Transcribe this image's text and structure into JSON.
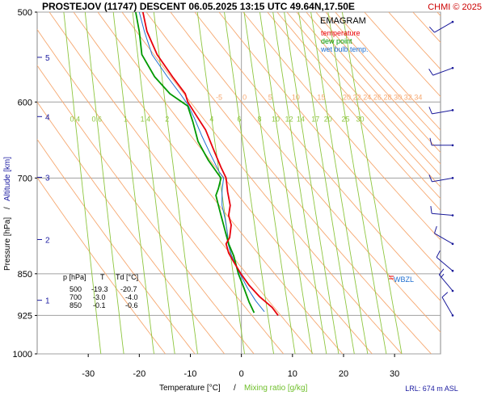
{
  "header": {
    "title": "PROSTEJOV (11747)   DESCENT   06.05.2025 13:15 UTC  49.64N,17.50E",
    "credit": "CHMI © 2025"
  },
  "legend": {
    "title": "EMAGRAM",
    "items": [
      {
        "label": "temperature",
        "color": "#e8000b"
      },
      {
        "label": "dew point",
        "color": "#009900"
      },
      {
        "label": "wet bulb temp.",
        "color": "#1f6fd0"
      }
    ]
  },
  "axes": {
    "xlabel_part1": "Temperature [°C]",
    "xlabel_sep": "/",
    "xlabel_part2": "Mixing ratio [g/kg]",
    "ylabel_part1": "Pressure [hPa]",
    "ylabel_sep": "/",
    "ylabel_part2": "Altitude [km]"
  },
  "table": {
    "header": [
      "p [hPa]",
      "T",
      "Td [°C]"
    ],
    "rows": [
      [
        "500",
        "-19.3",
        "-20.7"
      ],
      [
        "700",
        "-3.0",
        "-4.0"
      ],
      [
        "850",
        "-0.1",
        "-0.6"
      ]
    ]
  },
  "wbzl_label": "WBZL",
  "lrl_label": "LRL: 674 m ASL",
  "colors": {
    "temperature": "#e8000b",
    "dewpoint": "#009900",
    "wetbulb": "#1f6fd0",
    "dry_adiabat": "#f6a870",
    "mixing_ratio": "#8ec63f",
    "isobar": "#a0a0a0",
    "frame": "#888888",
    "altitude": "#1a1aa0",
    "wind": "#1a1a9a"
  },
  "chart_data": {
    "type": "line",
    "diagram": "emagram",
    "xlim": [
      -40,
      39
    ],
    "ylim": [
      1000,
      500
    ],
    "y_scale": "log",
    "x_ticks": [
      -30,
      -20,
      -10,
      0,
      10,
      20,
      30
    ],
    "y_ticks": [
      500,
      600,
      700,
      850,
      925,
      1000
    ],
    "altitude_ticks": [
      {
        "km": "5",
        "p": 548
      },
      {
        "km": "4",
        "p": 618
      },
      {
        "km": "3",
        "p": 699
      },
      {
        "km": "2",
        "p": 793
      },
      {
        "km": "1",
        "p": 897
      }
    ],
    "mixing_ratio_labels": [
      "0.4",
      "0.6",
      "1",
      "1.4",
      "2",
      "4",
      "6",
      "8",
      "10",
      "12",
      "14",
      "17",
      "20",
      "25",
      "30"
    ],
    "mixing_ratio_values": [
      0.4,
      0.6,
      1,
      1.4,
      2,
      4,
      6,
      8,
      10,
      12,
      14,
      17,
      20,
      25,
      30
    ],
    "dry_adiabat_labels": [
      "-5",
      "0",
      "5",
      "10",
      "15",
      "20",
      "22",
      "24",
      "26",
      "28",
      "30",
      "32",
      "34"
    ],
    "dry_adiabat_values_600hpa": [
      -5,
      0,
      5,
      10,
      15,
      20,
      22,
      24,
      26,
      28,
      30,
      32,
      34
    ],
    "series": [
      {
        "name": "temperature",
        "points": [
          [
            -19.3,
            500
          ],
          [
            -18.5,
            520
          ],
          [
            -16.5,
            545
          ],
          [
            -13.5,
            570
          ],
          [
            -11,
            590
          ],
          [
            -10.5,
            600
          ],
          [
            -9,
            615
          ],
          [
            -7,
            635
          ],
          [
            -5.5,
            660
          ],
          [
            -4,
            685
          ],
          [
            -3,
            700
          ],
          [
            -2.7,
            720
          ],
          [
            -2.2,
            740
          ],
          [
            -2.5,
            755
          ],
          [
            -2,
            770
          ],
          [
            -2.3,
            790
          ],
          [
            -3,
            800
          ],
          [
            -2.5,
            815
          ],
          [
            -1.5,
            830
          ],
          [
            -0.1,
            850
          ],
          [
            1.5,
            870
          ],
          [
            3.5,
            890
          ],
          [
            6,
            910
          ],
          [
            7.2,
            925
          ]
        ]
      },
      {
        "name": "dew point",
        "points": [
          [
            -20.7,
            500
          ],
          [
            -20,
            520
          ],
          [
            -19.5,
            545
          ],
          [
            -17,
            570
          ],
          [
            -14,
            590
          ],
          [
            -10.5,
            605
          ],
          [
            -9.5,
            625
          ],
          [
            -8.5,
            650
          ],
          [
            -6.5,
            675
          ],
          [
            -4.5,
            695
          ],
          [
            -4,
            700
          ],
          [
            -4.5,
            715
          ],
          [
            -5,
            725
          ],
          [
            -4.5,
            740
          ],
          [
            -4,
            755
          ],
          [
            -3.5,
            770
          ],
          [
            -3,
            785
          ],
          [
            -2.5,
            800
          ],
          [
            -1.5,
            820
          ],
          [
            -0.6,
            850
          ],
          [
            0.5,
            875
          ],
          [
            1.5,
            900
          ],
          [
            2.5,
            920
          ]
        ]
      },
      {
        "name": "wet bulb temp.",
        "points": [
          [
            -20,
            500
          ],
          [
            -19,
            520
          ],
          [
            -17.5,
            545
          ],
          [
            -14.5,
            570
          ],
          [
            -12,
            590
          ],
          [
            -10.5,
            603
          ],
          [
            -9.2,
            620
          ],
          [
            -7.8,
            642
          ],
          [
            -6,
            668
          ],
          [
            -4.3,
            692
          ],
          [
            -3.5,
            700
          ],
          [
            -3.8,
            718
          ],
          [
            -3.8,
            740
          ],
          [
            -3.2,
            760
          ],
          [
            -2.8,
            780
          ],
          [
            -2.6,
            800
          ],
          [
            -1.9,
            820
          ],
          [
            -0.3,
            850
          ],
          [
            1.2,
            875
          ],
          [
            2.8,
            898
          ],
          [
            4.5,
            918
          ]
        ]
      }
    ],
    "wbzl_p": 845,
    "wind_barbs": [
      {
        "p": 510,
        "dir_deg": 240,
        "speed_kt": 10
      },
      {
        "p": 560,
        "dir_deg": 250,
        "speed_kt": 10
      },
      {
        "p": 610,
        "dir_deg": 260,
        "speed_kt": 10
      },
      {
        "p": 655,
        "dir_deg": 270,
        "speed_kt": 10
      },
      {
        "p": 700,
        "dir_deg": 260,
        "speed_kt": 10
      },
      {
        "p": 755,
        "dir_deg": 275,
        "speed_kt": 10
      },
      {
        "p": 800,
        "dir_deg": 300,
        "speed_kt": 10
      },
      {
        "p": 845,
        "dir_deg": 310,
        "speed_kt": 10
      },
      {
        "p": 880,
        "dir_deg": 320,
        "speed_kt": 15
      },
      {
        "p": 925,
        "dir_deg": 330,
        "speed_kt": 10
      }
    ]
  }
}
